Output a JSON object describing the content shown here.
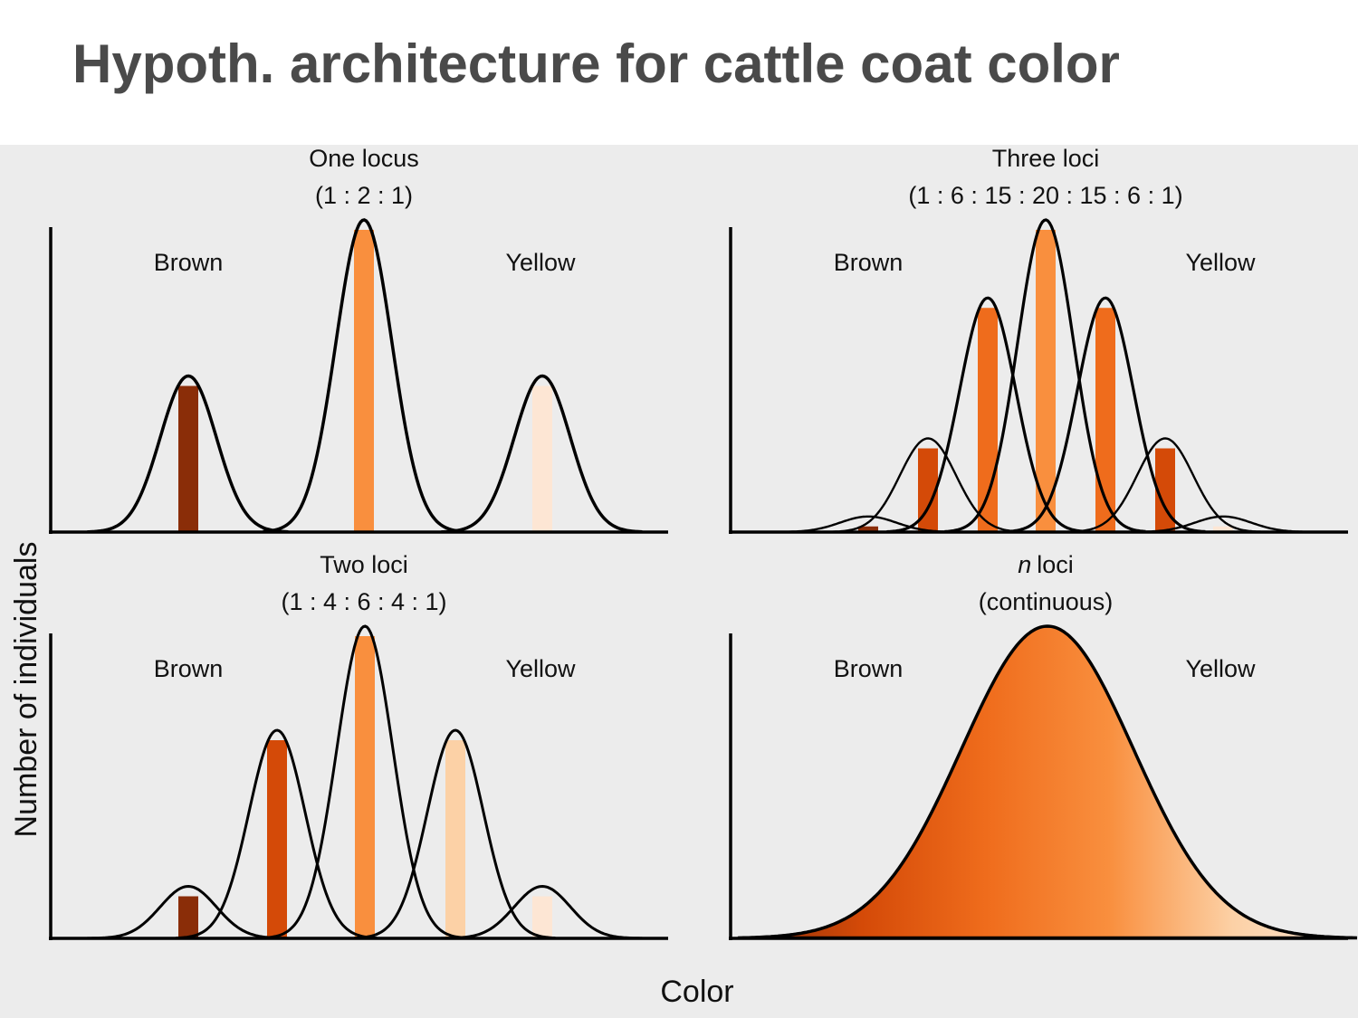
{
  "title": "Hypoth. architecture for cattle coat color",
  "axes": {
    "y_label": "Number of individuals",
    "x_label": "Color"
  },
  "colors": {
    "background": "#ececec",
    "brown": "#8a2d08",
    "dark_orange": "#d44a08",
    "medium_orange": "#ef6c1c",
    "orange": "#f98f3e",
    "peach": "#fcd1a6",
    "cream": "#fde6d4",
    "curve": "#000000"
  },
  "panels": [
    {
      "id": "one-locus",
      "title": "One locus",
      "ratio": "(1 : 2 : 1)",
      "left_label": "Brown",
      "right_label": "Yellow",
      "counts": [
        1,
        2,
        1
      ],
      "bar_colors": [
        "#8a2d08",
        "#f98f3e",
        "#fde6d4"
      ]
    },
    {
      "id": "three-loci",
      "title": "Three loci",
      "ratio": "(1 : 6 : 15 : 20 : 15 : 6 : 1)",
      "left_label": "Brown",
      "right_label": "Yellow",
      "counts": [
        1,
        6,
        15,
        20,
        15,
        6,
        1
      ],
      "bar_colors": [
        "#8a2d08",
        "#d44a08",
        "#ef6c1c",
        "#f98f3e",
        "#ef6c1c",
        "#d44a08",
        "#fde6d4"
      ]
    },
    {
      "id": "two-loci",
      "title": "Two loci",
      "ratio": "(1 : 4 : 6 : 4 : 1)",
      "left_label": "Brown",
      "right_label": "Yellow",
      "counts": [
        1,
        4,
        6,
        4,
        1
      ],
      "bar_colors": [
        "#8a2d08",
        "#d44a08",
        "#f98f3e",
        "#fcd1a6",
        "#fde6d4"
      ]
    },
    {
      "id": "n-loci",
      "title_n": "n",
      "title": "loci",
      "ratio": "(continuous)",
      "left_label": "Brown",
      "right_label": "Yellow",
      "gradient": [
        "#8a2d08",
        "#d44a08",
        "#ef6c1c",
        "#f98f3e",
        "#fcd1a6",
        "#fde6d4"
      ]
    }
  ]
}
